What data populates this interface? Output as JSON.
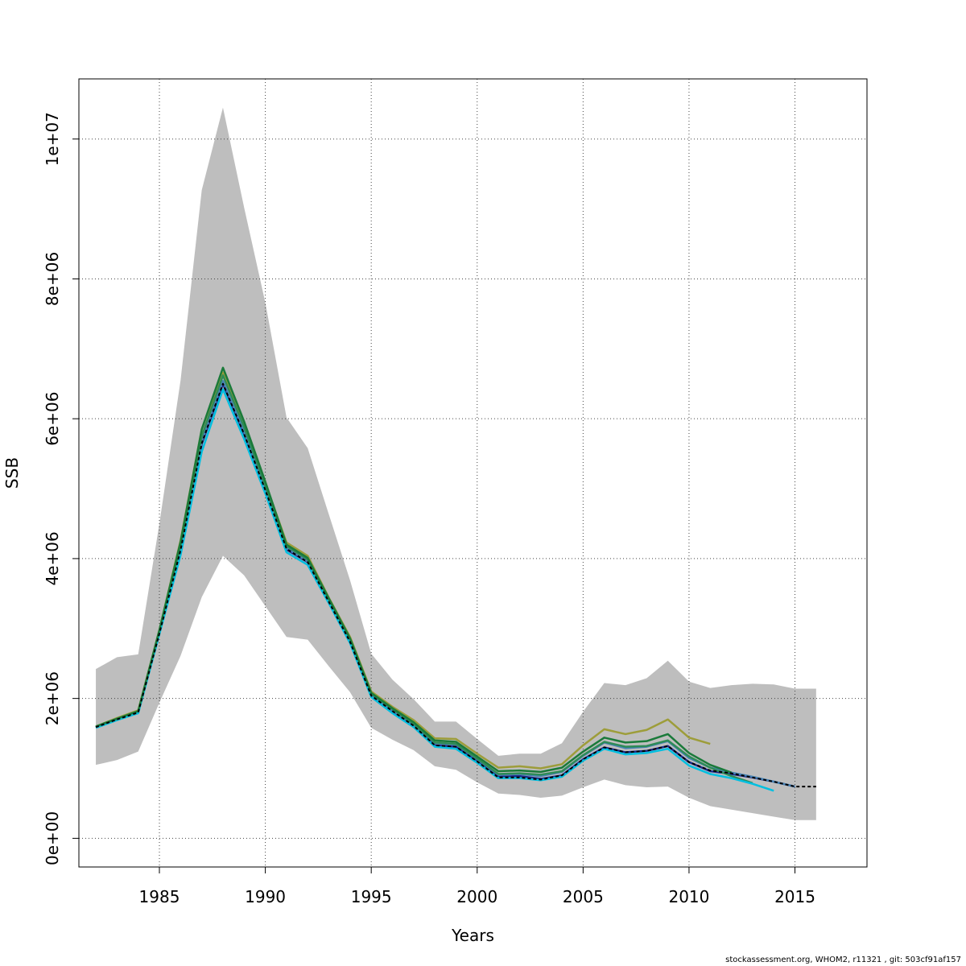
{
  "chart_data": {
    "type": "line",
    "xlabel": "Years",
    "ylabel": "SSB",
    "xlim": [
      1981.2,
      2018.4
    ],
    "ylim": [
      -410000,
      10860000
    ],
    "xticks": [
      1985,
      1990,
      1995,
      2000,
      2005,
      2010,
      2015
    ],
    "xtick_labels": [
      "1985",
      "1990",
      "1995",
      "2000",
      "2005",
      "2010",
      "2015"
    ],
    "yticks": [
      0,
      2000000,
      4000000,
      6000000,
      8000000,
      10000000
    ],
    "ytick_labels": [
      "0e+00",
      "2e+06",
      "4e+06",
      "6e+06",
      "8e+06",
      "1e+07"
    ],
    "grid": true,
    "band_color": "#bebebe",
    "confidence_band": {
      "x": [
        1982,
        1983,
        1984,
        1985,
        1986,
        1987,
        1988,
        1989,
        1990,
        1991,
        1992,
        1993,
        1994,
        1995,
        1996,
        1997,
        1998,
        1999,
        2000,
        2001,
        2002,
        2003,
        2004,
        2005,
        2006,
        2007,
        2008,
        2009,
        2010,
        2011,
        2012,
        2013,
        2014,
        2015,
        2016
      ],
      "upper": [
        2420000,
        2590000,
        2630000,
        4500000,
        6550000,
        9270000,
        10450000,
        9020000,
        7660000,
        6020000,
        5580000,
        4630000,
        3690000,
        2640000,
        2270000,
        1990000,
        1670000,
        1670000,
        1420000,
        1180000,
        1210000,
        1210000,
        1360000,
        1810000,
        2220000,
        2190000,
        2290000,
        2540000,
        2240000,
        2150000,
        2190000,
        2210000,
        2200000,
        2140000,
        2140000
      ],
      "lower": [
        1050000,
        1120000,
        1240000,
        1940000,
        2610000,
        3450000,
        4040000,
        3760000,
        3320000,
        2880000,
        2840000,
        2460000,
        2090000,
        1580000,
        1410000,
        1260000,
        1030000,
        980000,
        800000,
        640000,
        620000,
        580000,
        610000,
        730000,
        840000,
        760000,
        730000,
        740000,
        580000,
        460000,
        410000,
        360000,
        310000,
        260000,
        260000
      ]
    },
    "series": [
      {
        "color": "#9d9d3a",
        "x": [
          1982,
          1983,
          1984,
          1985,
          1986,
          1987,
          1988,
          1989,
          1990,
          1991,
          1992,
          1993,
          1994,
          1995,
          1996,
          1997,
          1998,
          1999,
          2000,
          2001,
          2002,
          2003,
          2004,
          2005,
          2006,
          2007,
          2008,
          2009,
          2010,
          2011
        ],
        "values": [
          1600000,
          1720000,
          1830000,
          2980000,
          4260000,
          5850000,
          6660000,
          5920000,
          5080000,
          4230000,
          4040000,
          3440000,
          2880000,
          2100000,
          1880000,
          1690000,
          1430000,
          1420000,
          1210000,
          1010000,
          1030000,
          1000000,
          1060000,
          1330000,
          1560000,
          1490000,
          1550000,
          1700000,
          1440000,
          1350000
        ]
      },
      {
        "color": "#1a2a8a",
        "x": [
          1982,
          1983,
          1984,
          1985,
          1986,
          1987,
          1988,
          1989,
          1990,
          1991,
          1992,
          1993,
          1994,
          1995,
          1996,
          1997,
          1998,
          1999,
          2000,
          2001,
          2002,
          2003,
          2004,
          2005,
          2006,
          2007,
          2008,
          2009,
          2010,
          2011,
          2012,
          2013,
          2014,
          2015
        ],
        "values": [
          1590000,
          1700000,
          1800000,
          2930000,
          4120000,
          5640000,
          6500000,
          5780000,
          4980000,
          4130000,
          3950000,
          3380000,
          2810000,
          2040000,
          1820000,
          1610000,
          1330000,
          1310000,
          1100000,
          880000,
          890000,
          850000,
          900000,
          1130000,
          1300000,
          1230000,
          1250000,
          1320000,
          1090000,
          960000,
          920000,
          870000,
          810000,
          740000
        ]
      },
      {
        "color": "#4682b4",
        "x": [
          1982,
          1983,
          1984,
          1985,
          1986,
          1987,
          1988,
          1989,
          1990,
          1991,
          1992,
          1993,
          1994,
          1995,
          1996,
          1997,
          1998,
          1999,
          2000,
          2001,
          2002,
          2003,
          2004,
          2005,
          2006,
          2007,
          2008,
          2009,
          2010,
          2011,
          2012,
          2013,
          2014,
          2015
        ],
        "values": [
          1590000,
          1700000,
          1800000,
          2940000,
          4150000,
          5680000,
          6540000,
          5810000,
          5000000,
          4150000,
          3960000,
          3390000,
          2820000,
          2050000,
          1830000,
          1630000,
          1360000,
          1340000,
          1130000,
          910000,
          920000,
          890000,
          950000,
          1180000,
          1370000,
          1290000,
          1310000,
          1390000,
          1150000,
          1010000,
          940000,
          880000,
          810000,
          740000
        ]
      },
      {
        "color": "#2e8b57",
        "x": [
          1982,
          1983,
          1984,
          1985,
          1986,
          1987,
          1988,
          1989,
          1990,
          1991,
          1992,
          1993,
          1994,
          1995,
          1996,
          1997,
          1998,
          1999,
          2000,
          2001,
          2002,
          2003,
          2004,
          2005,
          2006,
          2007,
          2008,
          2009,
          2010,
          2011,
          2012,
          2013
        ],
        "values": [
          1590000,
          1710000,
          1810000,
          2960000,
          4190000,
          5750000,
          6620000,
          5880000,
          5040000,
          4180000,
          3990000,
          3410000,
          2850000,
          2070000,
          1850000,
          1640000,
          1370000,
          1350000,
          1140000,
          920000,
          930000,
          910000,
          960000,
          1190000,
          1380000,
          1310000,
          1320000,
          1400000,
          1170000,
          1010000,
          890000,
          790000
        ]
      },
      {
        "color": "#00bfe0",
        "x": [
          1982,
          1983,
          1984,
          1985,
          1986,
          1987,
          1988,
          1989,
          1990,
          1991,
          1992,
          1993,
          1994,
          1995,
          1996,
          1997,
          1998,
          1999,
          2000,
          2001,
          2002,
          2003,
          2004,
          2005,
          2006,
          2007,
          2008,
          2009,
          2010,
          2011,
          2012,
          2013,
          2014
        ],
        "values": [
          1580000,
          1690000,
          1790000,
          2920000,
          4050000,
          5530000,
          6420000,
          5710000,
          4930000,
          4090000,
          3910000,
          3360000,
          2790000,
          2020000,
          1790000,
          1590000,
          1310000,
          1280000,
          1080000,
          860000,
          860000,
          830000,
          880000,
          1110000,
          1280000,
          1200000,
          1220000,
          1280000,
          1040000,
          920000,
          860000,
          780000,
          680000
        ]
      },
      {
        "color": "#1a7a3a",
        "x": [
          1982,
          1983,
          1984,
          1985,
          1986,
          1987,
          1988,
          1989,
          1990,
          1991,
          1992,
          1993,
          1994,
          1995,
          1996,
          1997,
          1998,
          1999,
          2000,
          2001,
          2002,
          2003,
          2004,
          2005,
          2006,
          2007,
          2008,
          2009,
          2010,
          2011,
          2012
        ],
        "values": [
          1600000,
          1710000,
          1820000,
          2980000,
          4240000,
          5850000,
          6730000,
          5960000,
          5100000,
          4200000,
          4010000,
          3430000,
          2860000,
          2080000,
          1860000,
          1660000,
          1400000,
          1380000,
          1170000,
          960000,
          970000,
          950000,
          1010000,
          1240000,
          1440000,
          1370000,
          1390000,
          1490000,
          1220000,
          1050000,
          940000
        ]
      },
      {
        "color": "#000000",
        "dashed": true,
        "x": [
          1982,
          1983,
          1984,
          1985,
          1986,
          1987,
          1988,
          1989,
          1990,
          1991,
          1992,
          1993,
          1994,
          1995,
          1996,
          1997,
          1998,
          1999,
          2000,
          2001,
          2002,
          2003,
          2004,
          2005,
          2006,
          2007,
          2008,
          2009,
          2010,
          2011,
          2012,
          2013,
          2014,
          2015,
          2016
        ],
        "values": [
          1590000,
          1700000,
          1800000,
          2930000,
          4120000,
          5650000,
          6500000,
          5780000,
          4980000,
          4140000,
          3950000,
          3380000,
          2810000,
          2040000,
          1820000,
          1610000,
          1330000,
          1310000,
          1100000,
          870000,
          870000,
          840000,
          900000,
          1130000,
          1300000,
          1230000,
          1250000,
          1320000,
          1090000,
          970000,
          930000,
          870000,
          810000,
          740000,
          740000
        ]
      }
    ]
  },
  "footer": {
    "text": "stockassessment.org, WHOM2, r11321 , git: 503cf91af157"
  }
}
